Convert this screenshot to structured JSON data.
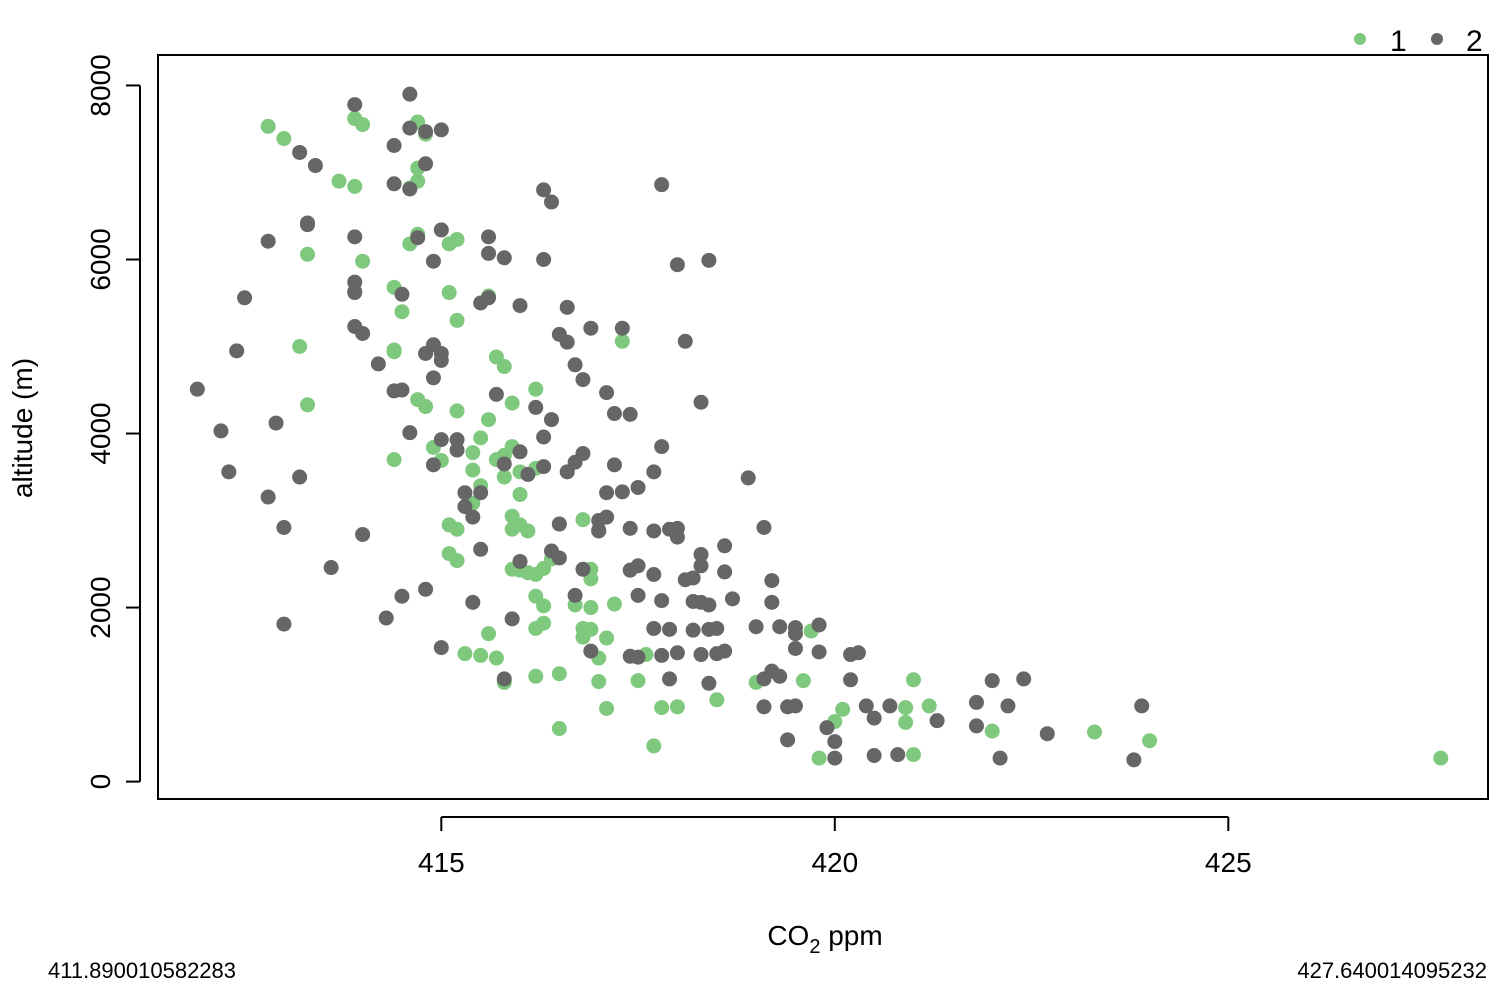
{
  "chart_data": {
    "type": "scatter",
    "title": "",
    "xlabel": "CO",
    "xlabel_subscript": "2",
    "xlabel_suffix": " ppm",
    "ylabel": "altitude (m)",
    "xlim": [
      411.4,
      428.3
    ],
    "ylim": [
      -200,
      8350
    ],
    "x_ticks": [
      415,
      420,
      425
    ],
    "y_ticks": [
      0,
      2000,
      4000,
      6000,
      8000
    ],
    "x_tick_labels": [
      "415",
      "420",
      "425"
    ],
    "y_tick_labels": [
      "0",
      "2000",
      "4000",
      "6000",
      "8000"
    ],
    "grid": false,
    "legend": {
      "placement": "top-right",
      "entries": [
        {
          "label": "1",
          "color": "#7fc97f"
        },
        {
          "label": "2",
          "color": "#666666"
        }
      ]
    },
    "range_labels": {
      "min": "411.890010582283",
      "max": "427.640014095232"
    },
    "series": [
      {
        "name": "1",
        "color": "#7fc97f",
        "points": [
          [
            412.8,
            7530
          ],
          [
            413.0,
            7390
          ],
          [
            413.7,
            6900
          ],
          [
            413.9,
            6840
          ],
          [
            413.3,
            6060
          ],
          [
            413.9,
            7620
          ],
          [
            414.0,
            7550
          ],
          [
            414.7,
            7580
          ],
          [
            414.8,
            7440
          ],
          [
            414.7,
            7050
          ],
          [
            414.7,
            6900
          ],
          [
            414.6,
            6820
          ],
          [
            414.0,
            5980
          ],
          [
            413.9,
            5640
          ],
          [
            414.4,
            5680
          ],
          [
            414.5,
            5400
          ],
          [
            414.4,
            4960
          ],
          [
            414.4,
            4940
          ],
          [
            414.4,
            3700
          ],
          [
            414.7,
            6290
          ],
          [
            414.6,
            6180
          ],
          [
            415.1,
            6180
          ],
          [
            415.2,
            6230
          ],
          [
            415.1,
            5620
          ],
          [
            415.2,
            5300
          ],
          [
            415.6,
            5580
          ],
          [
            413.2,
            5000
          ],
          [
            413.3,
            4330
          ],
          [
            414.7,
            4390
          ],
          [
            414.8,
            4310
          ],
          [
            414.9,
            3840
          ],
          [
            415.0,
            3690
          ],
          [
            415.2,
            4260
          ],
          [
            415.5,
            3950
          ],
          [
            415.6,
            4160
          ],
          [
            415.4,
            3780
          ],
          [
            415.4,
            3580
          ],
          [
            415.5,
            3400
          ],
          [
            415.4,
            3200
          ],
          [
            415.1,
            2950
          ],
          [
            415.2,
            2900
          ],
          [
            415.1,
            2620
          ],
          [
            415.2,
            2540
          ],
          [
            415.3,
            1470
          ],
          [
            415.5,
            1450
          ],
          [
            415.7,
            1420
          ],
          [
            415.6,
            1700
          ],
          [
            415.8,
            1140
          ],
          [
            415.7,
            4880
          ],
          [
            415.8,
            4770
          ],
          [
            415.9,
            4350
          ],
          [
            416.2,
            4510
          ],
          [
            415.9,
            3850
          ],
          [
            415.8,
            3750
          ],
          [
            415.7,
            3700
          ],
          [
            416.0,
            3560
          ],
          [
            416.2,
            3600
          ],
          [
            415.8,
            3500
          ],
          [
            416.0,
            3300
          ],
          [
            415.9,
            3050
          ],
          [
            415.9,
            2900
          ],
          [
            416.0,
            2950
          ],
          [
            416.1,
            2880
          ],
          [
            415.9,
            2440
          ],
          [
            416.0,
            2430
          ],
          [
            416.1,
            2400
          ],
          [
            416.2,
            2380
          ],
          [
            416.3,
            2450
          ],
          [
            416.2,
            2130
          ],
          [
            416.3,
            2020
          ],
          [
            416.4,
            2560
          ],
          [
            416.5,
            2960
          ],
          [
            416.2,
            1760
          ],
          [
            416.3,
            1820
          ],
          [
            416.2,
            1210
          ],
          [
            416.5,
            1240
          ],
          [
            416.5,
            610
          ],
          [
            416.7,
            2030
          ],
          [
            416.8,
            3010
          ],
          [
            416.9,
            2440
          ],
          [
            416.9,
            2330
          ],
          [
            416.8,
            1760
          ],
          [
            416.9,
            1750
          ],
          [
            416.8,
            1660
          ],
          [
            417.0,
            1150
          ],
          [
            417.0,
            1420
          ],
          [
            417.1,
            1650
          ],
          [
            417.1,
            840
          ],
          [
            417.2,
            2040
          ],
          [
            416.9,
            2000
          ],
          [
            417.3,
            5060
          ],
          [
            417.6,
            1460
          ],
          [
            417.5,
            1160
          ],
          [
            417.7,
            410
          ],
          [
            417.8,
            850
          ],
          [
            418.0,
            860
          ],
          [
            418.5,
            940
          ],
          [
            419.0,
            1140
          ],
          [
            419.6,
            1160
          ],
          [
            419.7,
            1730
          ],
          [
            419.8,
            270
          ],
          [
            420.0,
            690
          ],
          [
            420.1,
            830
          ],
          [
            420.9,
            850
          ],
          [
            420.9,
            680
          ],
          [
            421.0,
            310
          ],
          [
            421.0,
            1170
          ],
          [
            421.2,
            870
          ],
          [
            422.0,
            580
          ],
          [
            423.3,
            570
          ],
          [
            424.0,
            470
          ],
          [
            427.7,
            270
          ]
        ]
      },
      {
        "name": "2",
        "color": "#666666",
        "points": [
          [
            411.9,
            4510
          ],
          [
            412.2,
            4030
          ],
          [
            412.3,
            3560
          ],
          [
            412.4,
            4950
          ],
          [
            412.5,
            5560
          ],
          [
            412.8,
            6210
          ],
          [
            412.8,
            3270
          ],
          [
            413.0,
            2920
          ],
          [
            413.0,
            1810
          ],
          [
            412.9,
            4120
          ],
          [
            413.2,
            3500
          ],
          [
            413.2,
            7230
          ],
          [
            413.4,
            7080
          ],
          [
            413.3,
            6420
          ],
          [
            413.3,
            6400
          ],
          [
            413.6,
            2460
          ],
          [
            413.9,
            6260
          ],
          [
            413.9,
            5740
          ],
          [
            413.9,
            5620
          ],
          [
            413.9,
            5230
          ],
          [
            414.0,
            5150
          ],
          [
            414.2,
            4800
          ],
          [
            414.0,
            2840
          ],
          [
            414.3,
            1880
          ],
          [
            414.4,
            7310
          ],
          [
            414.4,
            6870
          ],
          [
            414.5,
            5600
          ],
          [
            414.4,
            4490
          ],
          [
            414.5,
            4500
          ],
          [
            414.5,
            2130
          ],
          [
            413.9,
            7780
          ],
          [
            414.6,
            7510
          ],
          [
            414.8,
            7470
          ],
          [
            414.8,
            7100
          ],
          [
            414.6,
            6810
          ],
          [
            414.7,
            6250
          ],
          [
            414.6,
            4010
          ],
          [
            414.8,
            4920
          ],
          [
            414.9,
            5020
          ],
          [
            415.0,
            4920
          ],
          [
            414.9,
            4640
          ],
          [
            415.0,
            4840
          ],
          [
            415.2,
            3930
          ],
          [
            414.9,
            3640
          ],
          [
            415.0,
            3930
          ],
          [
            415.2,
            3810
          ],
          [
            414.8,
            2210
          ],
          [
            415.0,
            1540
          ],
          [
            414.6,
            7900
          ],
          [
            415.0,
            7490
          ],
          [
            414.9,
            5980
          ],
          [
            415.0,
            6340
          ],
          [
            415.3,
            3320
          ],
          [
            415.3,
            3160
          ],
          [
            415.4,
            3040
          ],
          [
            415.5,
            3320
          ],
          [
            415.4,
            2060
          ],
          [
            415.5,
            2670
          ],
          [
            415.5,
            5500
          ],
          [
            415.6,
            5560
          ],
          [
            415.6,
            6260
          ],
          [
            415.6,
            6070
          ],
          [
            415.8,
            6020
          ],
          [
            415.7,
            4450
          ],
          [
            415.8,
            3650
          ],
          [
            416.0,
            3790
          ],
          [
            416.1,
            3530
          ],
          [
            416.0,
            2530
          ],
          [
            415.9,
            1870
          ],
          [
            415.8,
            1180
          ],
          [
            416.0,
            5470
          ],
          [
            416.2,
            4300
          ],
          [
            416.4,
            4160
          ],
          [
            416.3,
            3960
          ],
          [
            416.3,
            3620
          ],
          [
            416.4,
            2650
          ],
          [
            416.3,
            6800
          ],
          [
            416.3,
            6000
          ],
          [
            416.4,
            6660
          ],
          [
            416.6,
            5450
          ],
          [
            416.5,
            5140
          ],
          [
            416.6,
            5050
          ],
          [
            416.7,
            4790
          ],
          [
            416.8,
            4620
          ],
          [
            416.8,
            3770
          ],
          [
            416.7,
            3670
          ],
          [
            416.6,
            3560
          ],
          [
            416.5,
            2960
          ],
          [
            416.5,
            2570
          ],
          [
            416.7,
            2140
          ],
          [
            416.8,
            2440
          ],
          [
            417.0,
            2880
          ],
          [
            417.0,
            3000
          ],
          [
            417.1,
            3040
          ],
          [
            417.0,
            2890
          ],
          [
            416.9,
            1500
          ],
          [
            417.1,
            3320
          ],
          [
            417.3,
            3330
          ],
          [
            417.5,
            3380
          ],
          [
            417.4,
            4220
          ],
          [
            417.1,
            4470
          ],
          [
            417.2,
            4230
          ],
          [
            417.2,
            3640
          ],
          [
            417.3,
            5210
          ],
          [
            416.9,
            5210
          ],
          [
            417.4,
            2910
          ],
          [
            417.4,
            2430
          ],
          [
            417.5,
            2480
          ],
          [
            417.5,
            2140
          ],
          [
            417.4,
            1440
          ],
          [
            417.5,
            1430
          ],
          [
            417.7,
            2880
          ],
          [
            417.7,
            3560
          ],
          [
            417.8,
            3850
          ],
          [
            417.7,
            2380
          ],
          [
            417.8,
            2080
          ],
          [
            417.9,
            2900
          ],
          [
            418.0,
            2910
          ],
          [
            418.0,
            2810
          ],
          [
            417.7,
            1760
          ],
          [
            417.9,
            1750
          ],
          [
            417.8,
            1450
          ],
          [
            418.0,
            1480
          ],
          [
            417.9,
            1180
          ],
          [
            418.1,
            2320
          ],
          [
            418.2,
            2340
          ],
          [
            418.3,
            2480
          ],
          [
            418.3,
            2610
          ],
          [
            418.2,
            2070
          ],
          [
            418.3,
            2060
          ],
          [
            418.4,
            2030
          ],
          [
            418.4,
            1750
          ],
          [
            418.5,
            1760
          ],
          [
            418.5,
            1470
          ],
          [
            418.3,
            1460
          ],
          [
            418.4,
            1130
          ],
          [
            418.6,
            2710
          ],
          [
            418.6,
            2410
          ],
          [
            418.7,
            2100
          ],
          [
            417.8,
            6860
          ],
          [
            418.0,
            5940
          ],
          [
            418.4,
            5990
          ],
          [
            418.1,
            5060
          ],
          [
            418.3,
            4360
          ],
          [
            418.9,
            3490
          ],
          [
            419.0,
            1780
          ],
          [
            419.1,
            2920
          ],
          [
            419.2,
            2310
          ],
          [
            419.2,
            2060
          ],
          [
            419.2,
            1270
          ],
          [
            419.3,
            1210
          ],
          [
            419.1,
            1180
          ],
          [
            419.3,
            1780
          ],
          [
            419.5,
            1770
          ],
          [
            419.5,
            1700
          ],
          [
            419.5,
            1530
          ],
          [
            419.8,
            1800
          ],
          [
            419.8,
            1490
          ],
          [
            419.1,
            860
          ],
          [
            419.4,
            860
          ],
          [
            419.5,
            870
          ],
          [
            419.4,
            480
          ],
          [
            419.9,
            620
          ],
          [
            420.0,
            460
          ],
          [
            420.0,
            270
          ],
          [
            420.2,
            1460
          ],
          [
            420.3,
            1480
          ],
          [
            420.2,
            1170
          ],
          [
            420.4,
            870
          ],
          [
            420.5,
            730
          ],
          [
            420.7,
            870
          ],
          [
            420.5,
            300
          ],
          [
            420.8,
            310
          ],
          [
            421.3,
            700
          ],
          [
            421.8,
            640
          ],
          [
            421.8,
            910
          ],
          [
            422.0,
            1160
          ],
          [
            422.2,
            870
          ],
          [
            422.1,
            270
          ],
          [
            422.4,
            1180
          ],
          [
            422.7,
            550
          ],
          [
            423.8,
            250
          ],
          [
            423.9,
            870
          ],
          [
            418.2,
            1740
          ],
          [
            418.6,
            1500
          ]
        ]
      }
    ]
  }
}
